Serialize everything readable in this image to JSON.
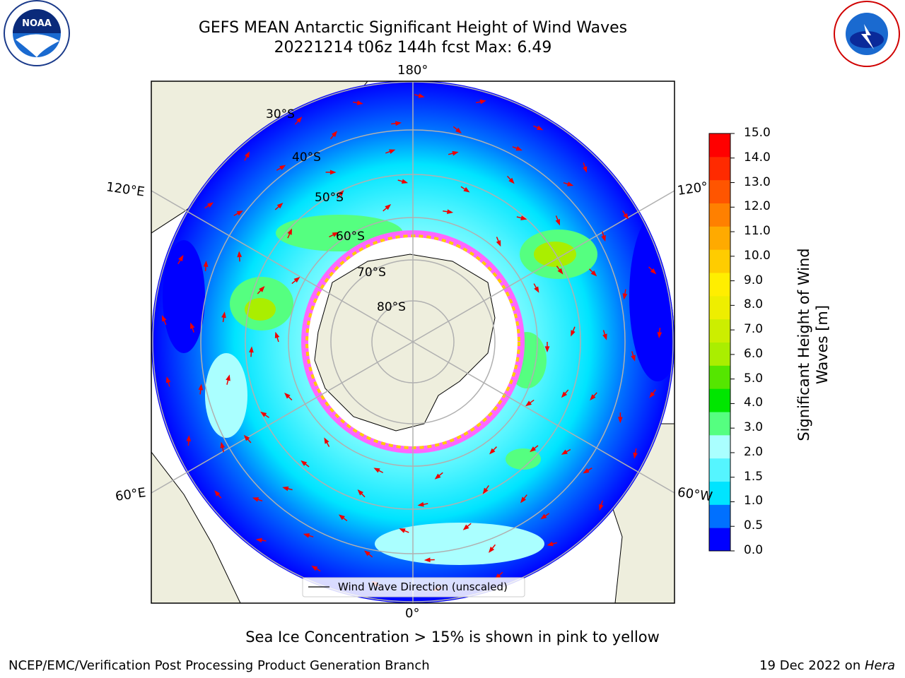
{
  "header": {
    "title_line1": "GEFS MEAN Antarctic Significant Height of Wind Waves",
    "title_line2": "20221214 t06z 144h fcst   Max: 6.49"
  },
  "logos": {
    "noaa_text": "NOAA",
    "noaa_ring": "NATIONAL OCEANIC AND ATMOSPHERIC ADMINISTRATION · U.S. DEPARTMENT OF COMMERCE",
    "nws_ring": "NATIONAL WEATHER SERVICE"
  },
  "map": {
    "projection": "south-polar-stereographic",
    "lon_labels": {
      "top": "180°",
      "left_upper": "120°E",
      "right_upper": "120°",
      "left_lower": "60°E",
      "right_lower": "60°W",
      "bottom": "0°"
    },
    "lat_labels": [
      "30°S",
      "40°S",
      "50°S",
      "60°S",
      "70°S",
      "80°S"
    ],
    "legend_label": "Wind Wave Direction (unscaled)",
    "colors": {
      "land": "#eeeedd",
      "arrow": "#ee0000",
      "grid": "#b0b0b0"
    }
  },
  "colorbar": {
    "label_line1": "Significant Height of Wind",
    "label_line2": "Waves [m]",
    "ticks": [
      "0.0",
      "0.5",
      "1.0",
      "1.5",
      "2.0",
      "3.0",
      "4.0",
      "5.0",
      "6.0",
      "7.0",
      "8.0",
      "9.0",
      "10.0",
      "11.0",
      "12.0",
      "13.0",
      "14.0",
      "15.0"
    ],
    "colors": [
      "#0000ff",
      "#0070ff",
      "#00e4ff",
      "#55f5ff",
      "#aaffff",
      "#55ff80",
      "#00e600",
      "#55e600",
      "#aaee00",
      "#ccee00",
      "#eeee00",
      "#ffee00",
      "#ffcc00",
      "#ffaa00",
      "#ff8000",
      "#ff5500",
      "#ff2a00",
      "#ff0000"
    ]
  },
  "footer": {
    "note": "Sea Ice Concentration > 15% is shown in pink to yellow",
    "left": "NCEP/EMC/Verification Post Processing Product Generation Branch",
    "right_prefix": "19 Dec 2022 on ",
    "right_machine": "Hera"
  }
}
